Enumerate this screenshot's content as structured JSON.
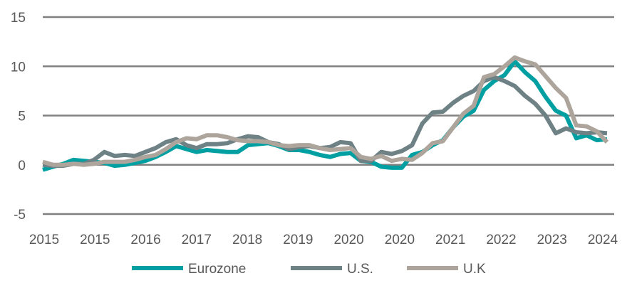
{
  "chart_data": {
    "type": "line",
    "title": "",
    "xlabel": "",
    "ylabel": "",
    "ylim": [
      -5,
      15
    ],
    "yticks": [
      "15",
      "10",
      "5",
      "0",
      "-5"
    ],
    "ytick_values": [
      15,
      10,
      5,
      0,
      -5
    ],
    "xtick_labels": [
      "2015",
      "2015",
      "2016",
      "2017",
      "2018",
      "2019",
      "2020",
      "2020",
      "2021",
      "2022",
      "2023",
      "2024"
    ],
    "grid": "horizontal",
    "legend_position": "bottom",
    "x": [
      "2015-01",
      "2015-03",
      "2015-05",
      "2015-07",
      "2015-09",
      "2015-11",
      "2016-01",
      "2016-03",
      "2016-05",
      "2016-07",
      "2016-09",
      "2016-11",
      "2017-01",
      "2017-03",
      "2017-05",
      "2017-07",
      "2017-09",
      "2017-11",
      "2018-01",
      "2018-03",
      "2018-05",
      "2018-07",
      "2018-09",
      "2018-11",
      "2019-01",
      "2019-03",
      "2019-05",
      "2019-07",
      "2019-09",
      "2019-11",
      "2020-01",
      "2020-03",
      "2020-05",
      "2020-07",
      "2020-09",
      "2020-11",
      "2021-01",
      "2021-03",
      "2021-05",
      "2021-07",
      "2021-09",
      "2021-11",
      "2022-01",
      "2022-03",
      "2022-05",
      "2022-07",
      "2022-09",
      "2022-11",
      "2023-01",
      "2023-03",
      "2023-05",
      "2023-07",
      "2023-09",
      "2023-11",
      "2024-01",
      "2024-03"
    ],
    "series": [
      {
        "name": "Eurozone",
        "color": "#00A0A2",
        "values": [
          -0.5,
          -0.2,
          0.1,
          0.5,
          0.4,
          0.3,
          0.2,
          -0.1,
          0.0,
          0.2,
          0.4,
          0.8,
          1.3,
          1.9,
          1.6,
          1.3,
          1.5,
          1.4,
          1.3,
          1.3,
          2.0,
          2.1,
          2.2,
          1.9,
          1.5,
          1.5,
          1.3,
          1.0,
          0.8,
          1.1,
          1.2,
          0.4,
          0.3,
          -0.2,
          -0.3,
          -0.3,
          1.0,
          1.3,
          2.0,
          2.5,
          3.8,
          4.9,
          5.5,
          7.6,
          8.5,
          9.1,
          10.5,
          9.4,
          8.5,
          6.9,
          5.5,
          5.0,
          2.7,
          3.0,
          2.5,
          2.6
        ]
      },
      {
        "name": "U.S.",
        "color": "#6E8286",
        "values": [
          0.0,
          -0.1,
          -0.1,
          0.1,
          0.1,
          0.5,
          1.3,
          0.9,
          1.0,
          0.9,
          1.3,
          1.7,
          2.3,
          2.6,
          2.0,
          1.7,
          2.1,
          2.1,
          2.2,
          2.6,
          2.9,
          2.8,
          2.3,
          2.1,
          1.6,
          1.8,
          1.9,
          1.7,
          1.8,
          2.3,
          2.2,
          0.4,
          0.4,
          1.3,
          1.1,
          1.4,
          2.0,
          4.2,
          5.3,
          5.4,
          6.3,
          7.0,
          7.5,
          8.5,
          8.9,
          8.5,
          8.0,
          7.0,
          6.2,
          5.0,
          3.2,
          3.7,
          3.3,
          3.2,
          3.3,
          3.2
        ]
      },
      {
        "name": "U.K",
        "color": "#ADA59C",
        "values": [
          0.3,
          0.0,
          0.0,
          0.1,
          0.0,
          0.1,
          0.3,
          0.3,
          0.3,
          0.5,
          0.8,
          1.0,
          1.6,
          2.3,
          2.7,
          2.6,
          3.0,
          3.0,
          2.8,
          2.5,
          2.4,
          2.4,
          2.3,
          2.0,
          1.9,
          2.0,
          2.0,
          1.7,
          1.5,
          1.6,
          1.7,
          0.8,
          0.6,
          0.9,
          0.4,
          0.6,
          0.5,
          1.2,
          2.2,
          2.4,
          3.8,
          5.2,
          6.0,
          8.9,
          9.2,
          10.0,
          10.9,
          10.5,
          10.2,
          9.0,
          7.8,
          6.8,
          4.0,
          3.9,
          3.4,
          2.3
        ]
      }
    ]
  }
}
